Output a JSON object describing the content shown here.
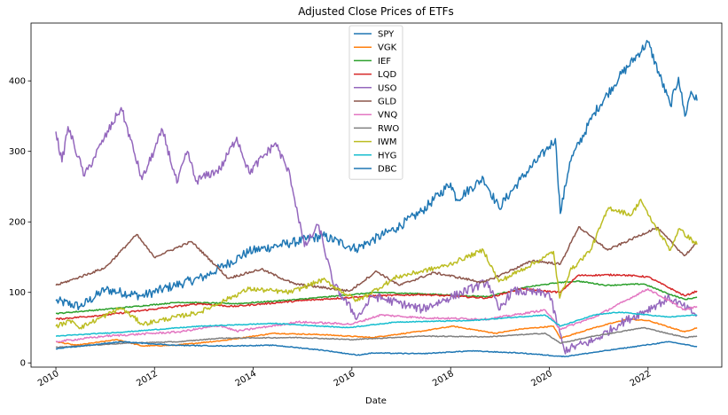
{
  "chart_data": {
    "type": "line",
    "title": "Adjusted Close Prices of ETFs",
    "xlabel": "Date",
    "ylabel": "",
    "xlim": [
      "2009-07-01",
      "2023-07-01"
    ],
    "ylim": [
      -6,
      482
    ],
    "x_ticks": [
      "2010",
      "2012",
      "2014",
      "2016",
      "2018",
      "2020",
      "2022"
    ],
    "y_ticks": [
      0,
      100,
      200,
      300,
      400
    ],
    "grid": false,
    "legend_position": "top-center",
    "series": [
      {
        "name": "SPY",
        "color": "#1f77b4",
        "points": [
          [
            "2010-01-01",
            88
          ],
          [
            "2010-07-01",
            80
          ],
          [
            "2011-01-01",
            104
          ],
          [
            "2011-10-01",
            95
          ],
          [
            "2012-06-01",
            110
          ],
          [
            "2013-01-01",
            122
          ],
          [
            "2013-12-01",
            158
          ],
          [
            "2014-10-01",
            170
          ],
          [
            "2015-06-01",
            180
          ],
          [
            "2016-02-01",
            162
          ],
          [
            "2016-12-01",
            192
          ],
          [
            "2017-06-01",
            215
          ],
          [
            "2018-01-01",
            255
          ],
          [
            "2018-02-15",
            232
          ],
          [
            "2018-09-01",
            262
          ],
          [
            "2018-12-24",
            220
          ],
          [
            "2019-06-01",
            260
          ],
          [
            "2019-12-01",
            300
          ],
          [
            "2020-02-15",
            318
          ],
          [
            "2020-03-23",
            212
          ],
          [
            "2020-06-01",
            285
          ],
          [
            "2020-12-01",
            355
          ],
          [
            "2021-06-01",
            405
          ],
          [
            "2021-12-31",
            455
          ],
          [
            "2022-06-15",
            365
          ],
          [
            "2022-08-15",
            405
          ],
          [
            "2022-10-01",
            350
          ],
          [
            "2022-11-15",
            385
          ],
          [
            "2022-12-30",
            372
          ]
        ]
      },
      {
        "name": "VGK",
        "color": "#ff7f0e",
        "points": [
          [
            "2010-01-01",
            30
          ],
          [
            "2010-06-01",
            25
          ],
          [
            "2011-04-01",
            33
          ],
          [
            "2011-10-01",
            24
          ],
          [
            "2012-06-01",
            25
          ],
          [
            "2013-06-01",
            32
          ],
          [
            "2014-06-01",
            42
          ],
          [
            "2015-06-01",
            40
          ],
          [
            "2016-06-01",
            36
          ],
          [
            "2017-06-01",
            45
          ],
          [
            "2018-01-15",
            52
          ],
          [
            "2018-12-01",
            42
          ],
          [
            "2019-06-01",
            48
          ],
          [
            "2020-02-01",
            52
          ],
          [
            "2020-03-23",
            35
          ],
          [
            "2020-12-01",
            50
          ],
          [
            "2021-08-01",
            62
          ],
          [
            "2022-01-01",
            60
          ],
          [
            "2022-09-30",
            44
          ],
          [
            "2022-12-30",
            50
          ]
        ]
      },
      {
        "name": "IEF",
        "color": "#2ca02c",
        "points": [
          [
            "2010-01-01",
            70
          ],
          [
            "2011-01-01",
            76
          ],
          [
            "2012-07-01",
            86
          ],
          [
            "2013-09-01",
            84
          ],
          [
            "2014-12-01",
            90
          ],
          [
            "2016-07-01",
            100
          ],
          [
            "2017-06-01",
            98
          ],
          [
            "2018-10-01",
            94
          ],
          [
            "2019-08-01",
            108
          ],
          [
            "2020-03-15",
            114
          ],
          [
            "2020-08-01",
            116
          ],
          [
            "2021-03-01",
            110
          ],
          [
            "2021-12-01",
            112
          ],
          [
            "2022-06-01",
            98
          ],
          [
            "2022-10-01",
            90
          ],
          [
            "2022-12-30",
            93
          ]
        ]
      },
      {
        "name": "LQD",
        "color": "#d62728",
        "points": [
          [
            "2010-01-01",
            62
          ],
          [
            "2011-01-01",
            68
          ],
          [
            "2012-12-01",
            84
          ],
          [
            "2013-08-01",
            80
          ],
          [
            "2014-12-01",
            88
          ],
          [
            "2016-06-01",
            95
          ],
          [
            "2017-06-01",
            97
          ],
          [
            "2018-10-01",
            92
          ],
          [
            "2019-06-01",
            105
          ],
          [
            "2020-03-23",
            100
          ],
          [
            "2020-08-01",
            124
          ],
          [
            "2021-06-01",
            125
          ],
          [
            "2022-01-01",
            122
          ],
          [
            "2022-10-01",
            95
          ],
          [
            "2022-12-30",
            102
          ]
        ]
      },
      {
        "name": "USO",
        "color": "#9467bd",
        "points": [
          [
            "2010-01-01",
            328
          ],
          [
            "2010-02-15",
            285
          ],
          [
            "2010-04-01",
            335
          ],
          [
            "2010-08-01",
            265
          ],
          [
            "2010-12-01",
            310
          ],
          [
            "2011-04-29",
            362
          ],
          [
            "2011-10-01",
            260
          ],
          [
            "2012-03-01",
            330
          ],
          [
            "2012-06-15",
            255
          ],
          [
            "2012-09-01",
            300
          ],
          [
            "2012-11-01",
            258
          ],
          [
            "2013-05-01",
            275
          ],
          [
            "2013-09-01",
            320
          ],
          [
            "2013-12-01",
            270
          ],
          [
            "2014-06-15",
            312
          ],
          [
            "2014-10-01",
            265
          ],
          [
            "2015-01-15",
            165
          ],
          [
            "2015-05-01",
            195
          ],
          [
            "2015-08-15",
            112
          ],
          [
            "2016-02-11",
            64
          ],
          [
            "2016-06-01",
            95
          ],
          [
            "2017-06-01",
            76
          ],
          [
            "2018-10-01",
            115
          ],
          [
            "2018-12-24",
            75
          ],
          [
            "2019-04-01",
            102
          ],
          [
            "2020-01-01",
            98
          ],
          [
            "2020-04-21",
            18
          ],
          [
            "2020-12-01",
            32
          ],
          [
            "2021-06-01",
            55
          ],
          [
            "2022-06-08",
            92
          ],
          [
            "2022-12-30",
            68
          ]
        ]
      },
      {
        "name": "GLD",
        "color": "#8c564b",
        "points": [
          [
            "2010-01-01",
            110
          ],
          [
            "2010-06-01",
            120
          ],
          [
            "2011-01-01",
            135
          ],
          [
            "2011-08-22",
            182
          ],
          [
            "2011-12-29",
            150
          ],
          [
            "2012-10-01",
            172
          ],
          [
            "2013-04-15",
            135
          ],
          [
            "2013-06-28",
            120
          ],
          [
            "2014-03-01",
            133
          ],
          [
            "2014-11-01",
            112
          ],
          [
            "2015-12-17",
            102
          ],
          [
            "2016-07-01",
            130
          ],
          [
            "2016-12-15",
            110
          ],
          [
            "2017-09-01",
            128
          ],
          [
            "2018-09-01",
            114
          ],
          [
            "2019-09-01",
            145
          ],
          [
            "2020-03-23",
            140
          ],
          [
            "2020-08-06",
            193
          ],
          [
            "2021-03-08",
            160
          ],
          [
            "2022-03-08",
            192
          ],
          [
            "2022-09-28",
            152
          ],
          [
            "2022-12-30",
            170
          ]
        ]
      },
      {
        "name": "VNQ",
        "color": "#e377c2",
        "points": [
          [
            "2010-01-01",
            30
          ],
          [
            "2011-01-01",
            38
          ],
          [
            "2012-07-01",
            44
          ],
          [
            "2013-05-01",
            53
          ],
          [
            "2013-09-01",
            45
          ],
          [
            "2014-12-01",
            58
          ],
          [
            "2016-01-01",
            55
          ],
          [
            "2016-08-01",
            68
          ],
          [
            "2017-06-01",
            64
          ],
          [
            "2018-10-01",
            62
          ],
          [
            "2019-12-01",
            75
          ],
          [
            "2020-03-23",
            48
          ],
          [
            "2020-12-01",
            65
          ],
          [
            "2021-12-31",
            105
          ],
          [
            "2022-10-01",
            75
          ],
          [
            "2022-12-30",
            80
          ]
        ]
      },
      {
        "name": "RWO",
        "color": "#7f7f7f",
        "points": [
          [
            "2010-01-01",
            22
          ],
          [
            "2011-06-01",
            28
          ],
          [
            "2012-07-01",
            30
          ],
          [
            "2013-05-01",
            35
          ],
          [
            "2014-12-01",
            36
          ],
          [
            "2016-01-01",
            33
          ],
          [
            "2017-06-01",
            38
          ],
          [
            "2018-10-01",
            37
          ],
          [
            "2019-12-01",
            42
          ],
          [
            "2020-03-23",
            28
          ],
          [
            "2020-12-01",
            38
          ],
          [
            "2021-12-01",
            50
          ],
          [
            "2022-10-01",
            36
          ],
          [
            "2022-12-30",
            38
          ]
        ]
      },
      {
        "name": "IWM",
        "color": "#bcbd22",
        "points": [
          [
            "2010-01-01",
            52
          ],
          [
            "2010-05-01",
            60
          ],
          [
            "2010-07-01",
            50
          ],
          [
            "2011-04-29",
            78
          ],
          [
            "2011-10-03",
            55
          ],
          [
            "2012-12-01",
            72
          ],
          [
            "2013-12-01",
            105
          ],
          [
            "2014-10-01",
            100
          ],
          [
            "2015-06-01",
            118
          ],
          [
            "2016-02-11",
            88
          ],
          [
            "2016-12-01",
            122
          ],
          [
            "2017-12-01",
            138
          ],
          [
            "2018-08-31",
            160
          ],
          [
            "2018-12-24",
            115
          ],
          [
            "2019-12-01",
            150
          ],
          [
            "2020-02-01",
            158
          ],
          [
            "2020-03-18",
            92
          ],
          [
            "2020-06-01",
            130
          ],
          [
            "2020-11-01",
            160
          ],
          [
            "2021-03-15",
            220
          ],
          [
            "2021-09-01",
            210
          ],
          [
            "2021-11-08",
            232
          ],
          [
            "2022-01-01",
            210
          ],
          [
            "2022-06-16",
            160
          ],
          [
            "2022-08-15",
            190
          ],
          [
            "2022-12-30",
            168
          ]
        ]
      },
      {
        "name": "HYG",
        "color": "#17becf",
        "points": [
          [
            "2010-01-01",
            38
          ],
          [
            "2011-06-01",
            44
          ],
          [
            "2012-12-01",
            52
          ],
          [
            "2014-06-01",
            56
          ],
          [
            "2015-12-01",
            50
          ],
          [
            "2016-12-01",
            58
          ],
          [
            "2018-06-01",
            60
          ],
          [
            "2019-12-01",
            68
          ],
          [
            "2020-03-23",
            52
          ],
          [
            "2020-12-01",
            68
          ],
          [
            "2021-06-01",
            72
          ],
          [
            "2022-06-01",
            65
          ],
          [
            "2022-12-30",
            68
          ]
        ]
      },
      {
        "name": "DBC",
        "color": "#1f77b4",
        "points": [
          [
            "2010-01-01",
            20
          ],
          [
            "2011-04-29",
            30
          ],
          [
            "2012-06-01",
            25
          ],
          [
            "2013-06-01",
            24
          ],
          [
            "2014-06-01",
            25
          ],
          [
            "2015-06-01",
            18
          ],
          [
            "2016-02-11",
            11
          ],
          [
            "2016-06-01",
            14
          ],
          [
            "2017-06-01",
            13
          ],
          [
            "2018-06-01",
            17
          ],
          [
            "2019-06-01",
            14
          ],
          [
            "2020-04-21",
            9
          ],
          [
            "2020-12-01",
            15
          ],
          [
            "2021-06-01",
            20
          ],
          [
            "2022-06-08",
            30
          ],
          [
            "2022-12-30",
            23
          ]
        ]
      }
    ]
  }
}
